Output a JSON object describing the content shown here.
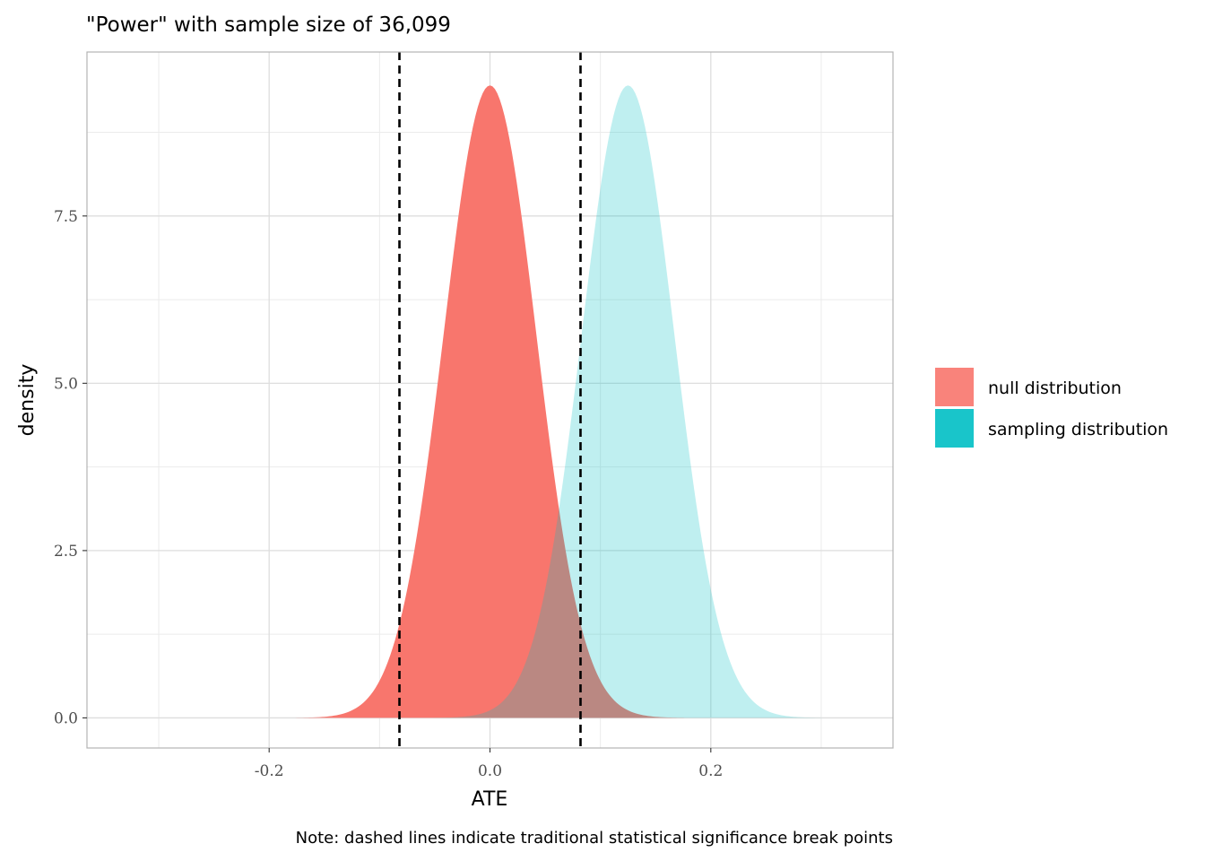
{
  "chart_data": {
    "type": "area",
    "title": "\"Power\" with sample size of 36,099",
    "xlabel": "ATE",
    "ylabel": "density",
    "caption": "Note: dashed lines indicate traditional statistical significance break points",
    "xlim": [
      -0.365,
      0.365
    ],
    "ylim": [
      -0.45,
      9.95
    ],
    "x_ticks": [
      -0.2,
      0.0,
      0.2
    ],
    "x_tick_labels": [
      "-0.2",
      "0.0",
      "0.2"
    ],
    "y_ticks": [
      0.0,
      2.5,
      5.0,
      7.5
    ],
    "y_tick_labels": [
      "0.0",
      "2.5",
      "5.0",
      "7.5"
    ],
    "grid": true,
    "legend_position": "right",
    "series": [
      {
        "name": "null distribution",
        "mean": 0.0,
        "sd": 0.042,
        "peak_density": 9.45,
        "color": "#F8766D",
        "alpha": 1.0
      },
      {
        "name": "sampling distribution",
        "mean": 0.125,
        "sd": 0.042,
        "peak_density": 9.45,
        "color": "#00BFC4",
        "alpha": 0.25
      }
    ],
    "overlap_color": "#B87070",
    "vlines": [
      {
        "x": -0.082,
        "style": "dashed",
        "color": "#000000"
      },
      {
        "x": 0.082,
        "style": "dashed",
        "color": "#000000"
      }
    ]
  }
}
